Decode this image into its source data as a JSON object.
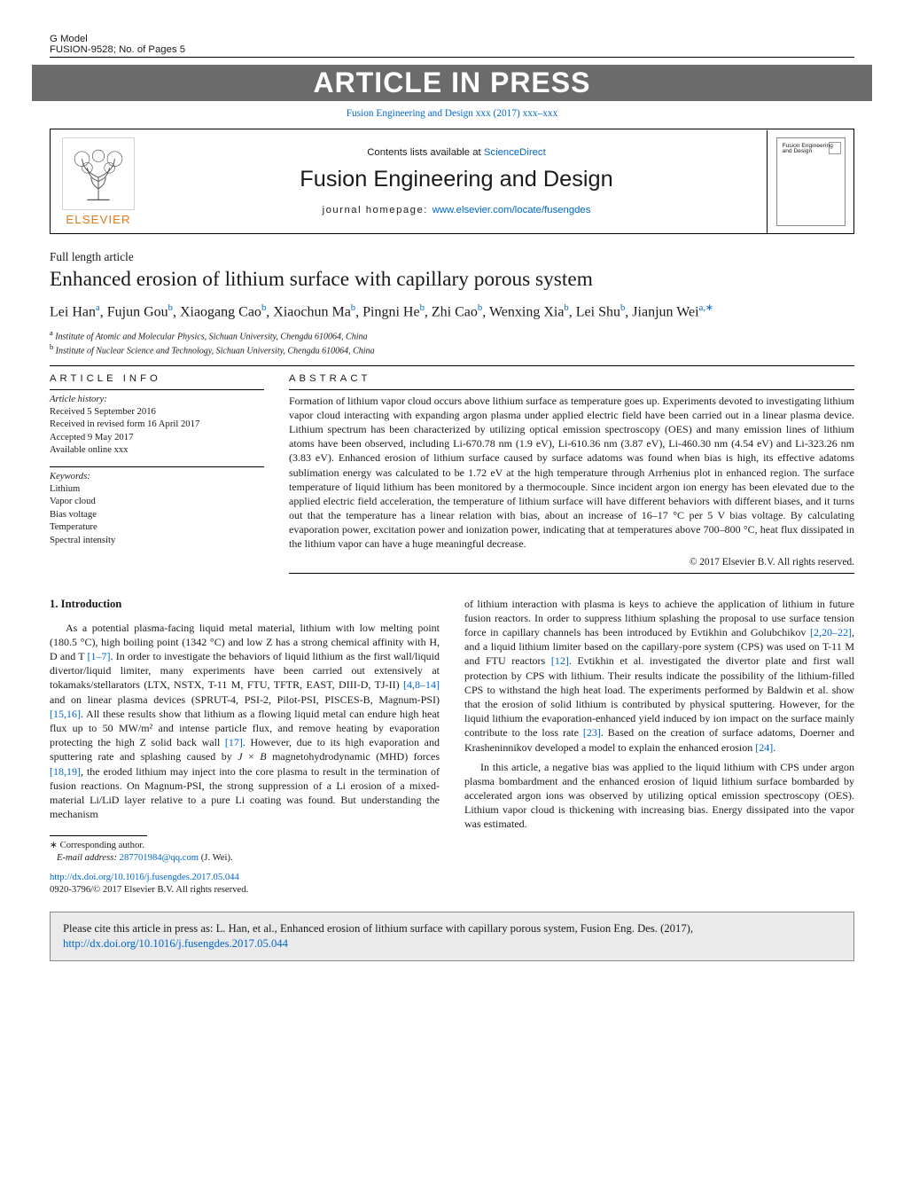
{
  "header": {
    "model": "G Model",
    "idline": "FUSION-9528;   No. of Pages 5",
    "banner": "ARTICLE IN PRESS",
    "doi_line": "Fusion Engineering and Design xxx (2017) xxx–xxx"
  },
  "journal_box": {
    "contents_prefix": "Contents lists available at ",
    "contents_link": "ScienceDirect",
    "journal_name": "Fusion Engineering and Design",
    "homepage_prefix": "journal homepage: ",
    "homepage_link": "www.elsevier.com/locate/fusengdes",
    "logo_text": "ELSEVIER",
    "cover_label": "Fusion Engineering and Design"
  },
  "article": {
    "type": "Full length article",
    "title": "Enhanced erosion of lithium surface with capillary porous system",
    "authors_html": "Lei Han<sup>a</sup>, Fujun Gou<sup>b</sup>, Xiaogang Cao<sup>b</sup>, Xiaochun Ma<sup>b</sup>, Pingni He<sup>b</sup>, Zhi Cao<sup>b</sup>, Wenxing Xia<sup>b</sup>, Lei Shu<sup>b</sup>, Jianjun Wei<sup>a,∗</sup>",
    "affil_a": "Institute of Atomic and Molecular Physics, Sichuan University, Chengdu 610064, China",
    "affil_b": "Institute of Nuclear Science and Technology, Sichuan University, Chengdu 610064, China"
  },
  "info": {
    "head": "ARTICLE INFO",
    "history_label": "Article history:",
    "history": [
      "Received 5 September 2016",
      "Received in revised form 16 April 2017",
      "Accepted 9 May 2017",
      "Available online xxx"
    ],
    "kw_label": "Keywords:",
    "keywords": [
      "Lithium",
      "Vapor cloud",
      "Bias voltage",
      "Temperature",
      "Spectral intensity"
    ]
  },
  "abstract": {
    "head": "ABSTRACT",
    "text": "Formation of lithium vapor cloud occurs above lithium surface as temperature goes up. Experiments devoted to investigating lithium vapor cloud interacting with expanding argon plasma under applied electric field have been carried out in a linear plasma device. Lithium spectrum has been characterized by utilizing optical emission spectroscopy (OES) and many emission lines of lithium atoms have been observed, including Li-670.78 nm (1.9 eV), Li-610.36 nm (3.87 eV), Li-460.30 nm (4.54 eV) and Li-323.26 nm (3.83 eV). Enhanced erosion of lithium surface caused by surface adatoms was found when bias is high, its effective adatoms sublimation energy was calculated to be 1.72 eV at the high temperature through Arrhenius plot in enhanced region. The surface temperature of liquid lithium has been monitored by a thermocouple. Since incident argon ion energy has been elevated due to the applied electric field acceleration, the temperature of lithium surface will have different behaviors with different biases, and it turns out that the temperature has a linear relation with bias, about an increase of 16–17 °C per 5 V bias voltage. By calculating evaporation power, excitation power and ionization power, indicating that at temperatures above 700–800 °C, heat flux dissipated in the lithium vapor can have a huge meaningful decrease.",
    "copyright": "© 2017 Elsevier B.V. All rights reserved."
  },
  "intro": {
    "heading": "1.  Introduction",
    "left_p1": "As a potential plasma-facing liquid metal material, lithium with low melting point (180.5 °C), high boiling point (1342 °C) and low Z has a strong chemical affinity with H, D and T [1–7]. In order to investigate the behaviors of liquid lithium as the first wall/liquid divertor/liquid limiter, many experiments have been carried out extensively at tokamaks/stellarators (LTX, NSTX, T-11 M, FTU, TFTR, EAST, DIII-D, TJ-II) [4,8–14] and on linear plasma devices (SPRUT-4, PSI-2, Pilot-PSI, PISCES-B, Magnum-PSI) [15,16]. All these results show that lithium as a flowing liquid metal can endure high heat flux up to 50 MW/m² and intense particle flux, and remove heating by evaporation protecting the high Z solid back wall [17]. However, due to its high evaporation and sputtering rate and splashing caused by J × B magnetohydrodynamic (MHD) forces [18,19], the eroded lithium may inject into the core plasma to result in the termination of fusion reactions. On Magnum-PSI, the strong suppression of a Li erosion of a mixed-material Li/LiD layer relative to a pure Li coating was found. But understanding the mechanism",
    "right_p1": "of lithium interaction with plasma is keys to achieve the application of lithium in future fusion reactors. In order to suppress lithium splashing the proposal to use surface tension force in capillary channels has been introduced by Evtikhin and Golubchikov [2,20–22], and a liquid lithium limiter based on the capillary-pore system (CPS) was used on T-11 M and FTU reactors [12]. Evtikhin et al. investigated the divertor plate and first wall protection by CPS with lithium. Their results indicate the possibility of the lithium-filled CPS to withstand the high heat load. The experiments performed by Baldwin et al. show that the erosion of solid lithium is contributed by physical sputtering. However, for the liquid lithium the evaporation-enhanced yield induced by ion impact on the surface mainly contribute to the loss rate [23]. Based on the creation of surface adatoms, Doerner and Krasheninnikov developed a model to explain the enhanced erosion [24].",
    "right_p2": "In this article, a negative bias was applied to the liquid lithium with CPS under argon plasma bombardment and the enhanced erosion of liquid lithium surface bombarded by accelerated argon ions was observed by utilizing optical emission spectroscopy (OES). Lithium vapor cloud is thickening with increasing bias. Energy dissipated into the vapor was estimated."
  },
  "footnote": {
    "corr": "∗ Corresponding author.",
    "email_label": "E-mail address: ",
    "email": "287701984@qq.com",
    "email_suffix": " (J. Wei)."
  },
  "bottom": {
    "doi_link": "http://dx.doi.org/10.1016/j.fusengdes.2017.05.044",
    "issn_line": "0920-3796/© 2017 Elsevier B.V. All rights reserved."
  },
  "citebox": {
    "prefix": "Please cite this article in press as: L. Han, et al., Enhanced erosion of lithium surface with capillary porous system, Fusion Eng. Des. (2017), ",
    "link": "http://dx.doi.org/10.1016/j.fusengdes.2017.05.044"
  },
  "refs": {
    "r1": "[1–7]",
    "r2": "[4,8–14]",
    "r3": "[15,16]",
    "r4": "[17]",
    "r5": "[18,19]",
    "r6": "[2,20–22]",
    "r7": "[12]",
    "r8": "[23]",
    "r9": "[24]"
  },
  "colors": {
    "link": "#0066cc",
    "banner_bg": "#6b6b6b",
    "elsevier_orange": "#e67817",
    "citebox_bg": "#eaeaea"
  }
}
